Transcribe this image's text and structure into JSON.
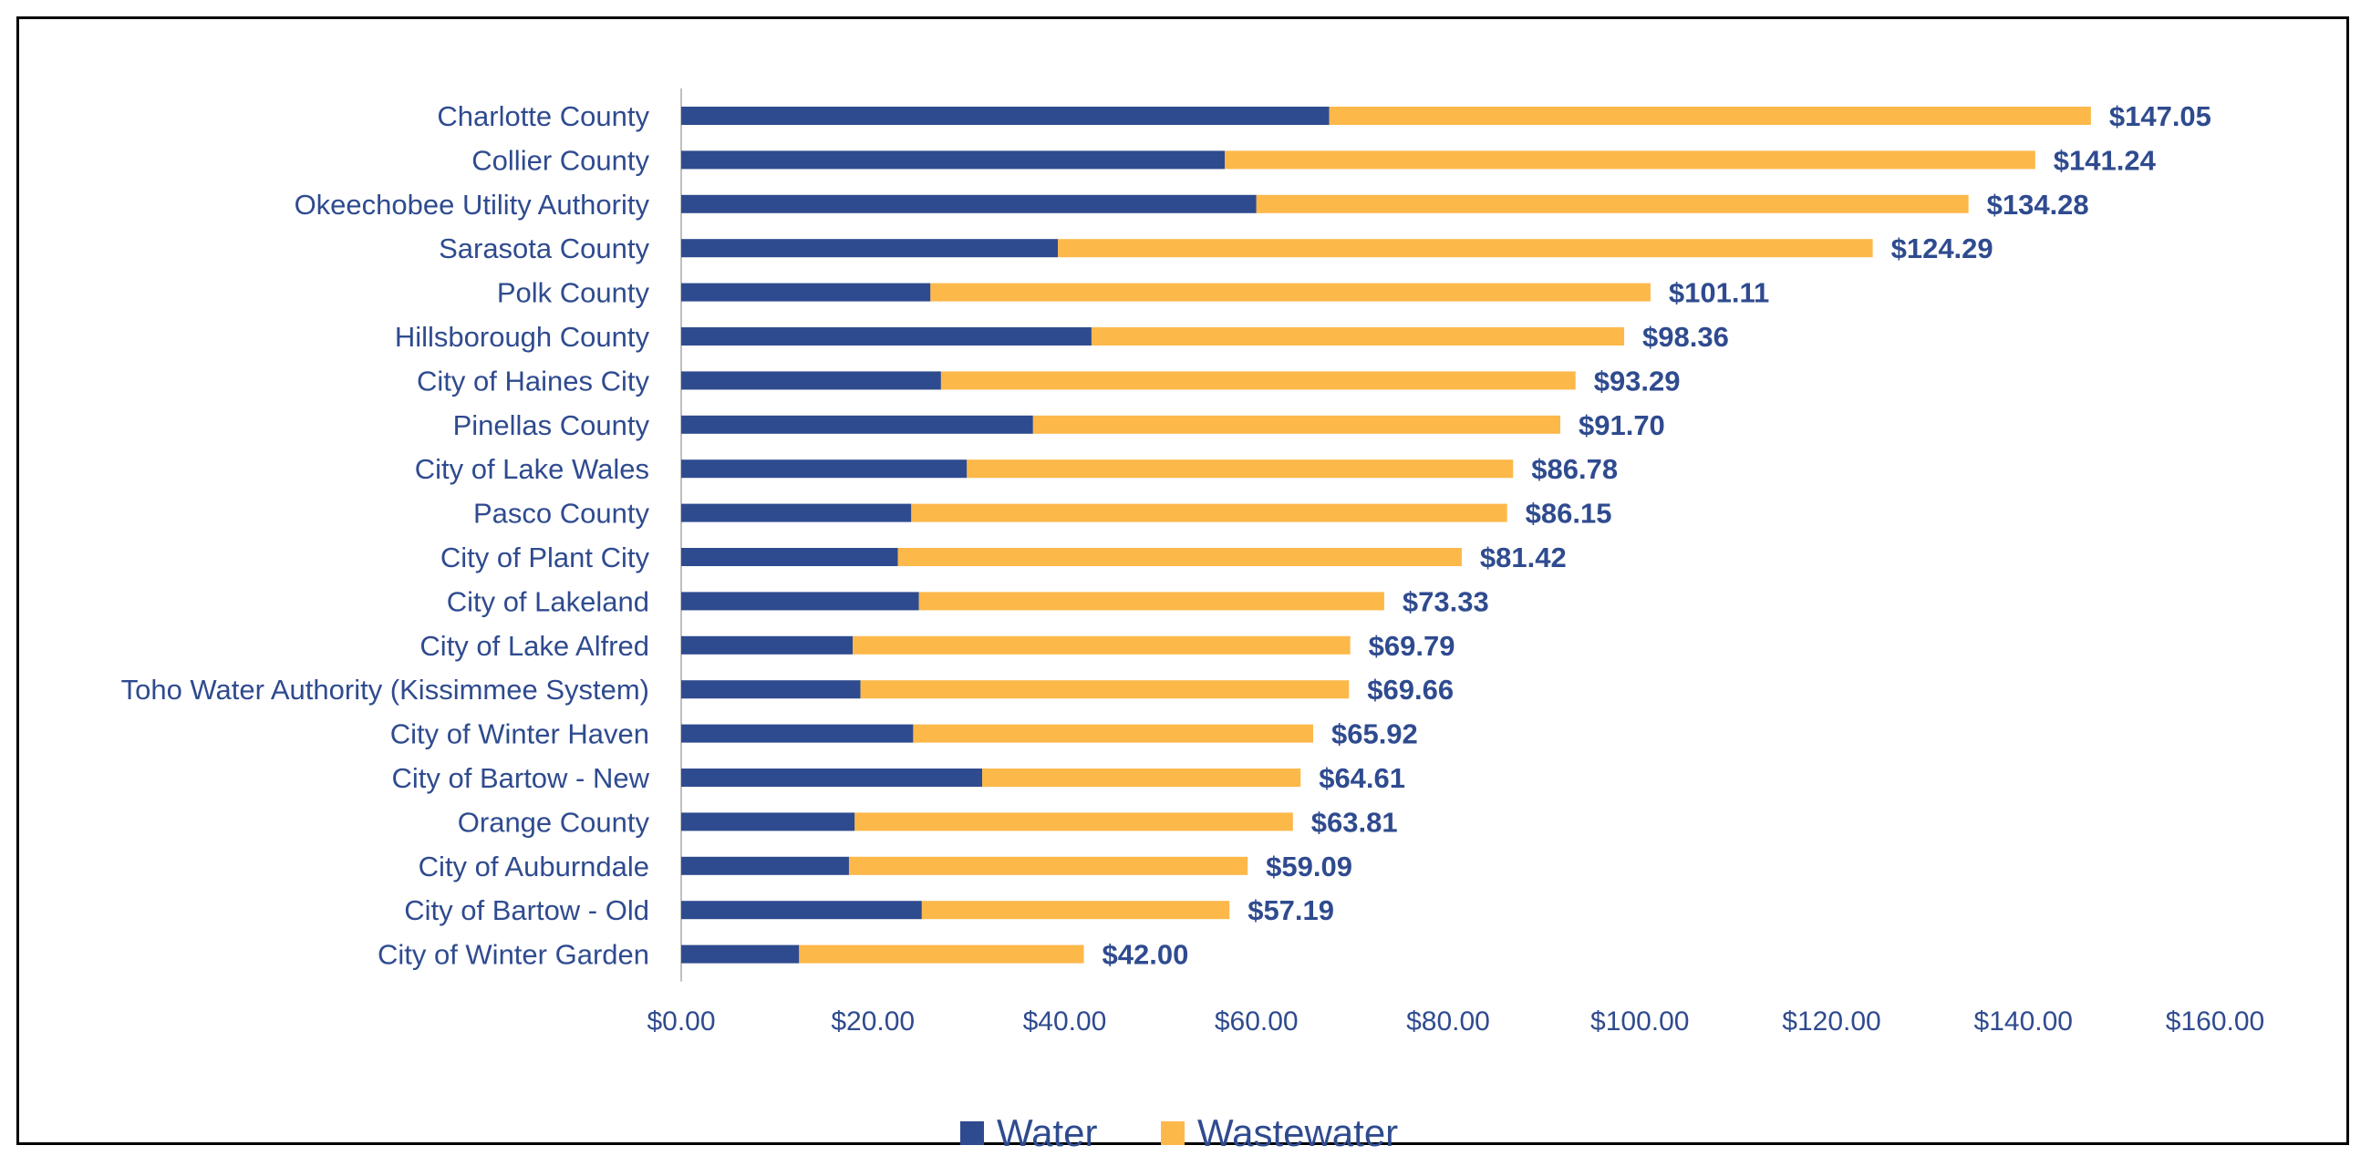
{
  "chart_data": {
    "type": "bar",
    "orientation": "horizontal",
    "stacked": true,
    "categories": [
      "Charlotte County",
      "Collier County",
      "Okeechobee Utility Authority",
      "Sarasota County",
      "Polk County",
      "Hillsborough County",
      "City of Haines City",
      "Pinellas County",
      "City of Lake Wales",
      "Pasco County",
      "City of Plant City",
      "City of Lakeland",
      "City of Lake Alfred",
      "Toho Water Authority (Kissimmee System)",
      "City of Winter Haven",
      "City of Bartow - New",
      "Orange County",
      "City of Auburndale",
      "City of Bartow - Old",
      "City of Winter Garden"
    ],
    "series": [
      {
        "name": "Water",
        "color": "#2F4B8F",
        "values": [
          67.6,
          56.7,
          60.0,
          39.3,
          26.0,
          42.8,
          27.1,
          36.7,
          29.8,
          24.0,
          22.6,
          24.8,
          17.9,
          18.7,
          24.2,
          31.4,
          18.1,
          17.5,
          25.1,
          12.3
        ]
      },
      {
        "name": "Wastewater",
        "color": "#FDB84A",
        "values": [
          79.45,
          84.54,
          74.28,
          84.99,
          75.11,
          55.56,
          66.19,
          55.0,
          56.98,
          62.15,
          58.82,
          48.53,
          51.89,
          50.96,
          41.72,
          33.21,
          45.71,
          41.59,
          32.09,
          29.7
        ]
      }
    ],
    "totals": [
      147.05,
      141.24,
      134.28,
      124.29,
      101.11,
      98.36,
      93.29,
      91.7,
      86.78,
      86.15,
      81.42,
      73.33,
      69.79,
      69.66,
      65.92,
      64.61,
      63.81,
      59.09,
      57.19,
      42.0
    ],
    "total_labels": [
      "$147.05",
      "$141.24",
      "$134.28",
      "$124.29",
      "$101.11",
      "$98.36",
      "$93.29",
      "$91.70",
      "$86.78",
      "$86.15",
      "$81.42",
      "$73.33",
      "$69.79",
      "$69.66",
      "$65.92",
      "$64.61",
      "$63.81",
      "$59.09",
      "$57.19",
      "$42.00"
    ],
    "xlim": [
      0,
      160
    ],
    "x_ticks": [
      0,
      20,
      40,
      60,
      80,
      100,
      120,
      140,
      160
    ],
    "x_tick_labels": [
      "$0.00",
      "$20.00",
      "$40.00",
      "$60.00",
      "$80.00",
      "$100.00",
      "$120.00",
      "$140.00",
      "$160.00"
    ],
    "grid": false,
    "legend": {
      "placement": "bottom",
      "entries": [
        "Water",
        "Wastewater"
      ]
    },
    "title": "",
    "xlabel": "",
    "ylabel": ""
  }
}
